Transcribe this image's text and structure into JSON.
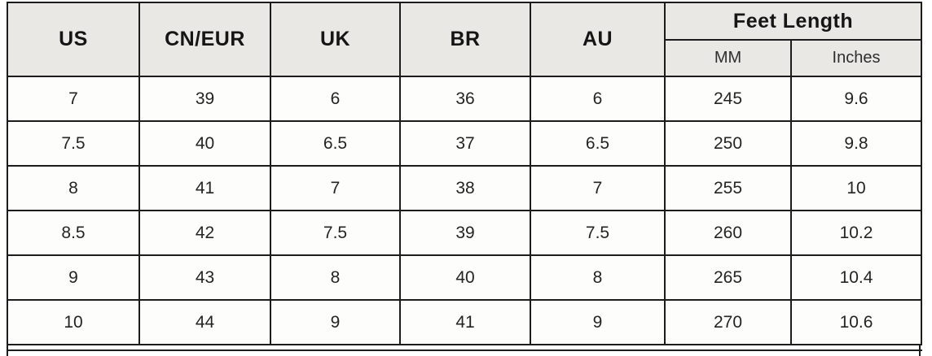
{
  "chart_data": {
    "type": "table",
    "columns": [
      "US",
      "CN/EUR",
      "UK",
      "BR",
      "AU",
      "MM",
      "Inches"
    ],
    "column_groups": [
      {
        "label": "Feet Length",
        "spans": [
          "MM",
          "Inches"
        ]
      }
    ],
    "rows": [
      [
        "7",
        "39",
        "6",
        "36",
        "6",
        "245",
        "9.6"
      ],
      [
        "7.5",
        "40",
        "6.5",
        "37",
        "6.5",
        "250",
        "9.8"
      ],
      [
        "8",
        "41",
        "7",
        "38",
        "7",
        "255",
        "10"
      ],
      [
        "8.5",
        "42",
        "7.5",
        "39",
        "7.5",
        "260",
        "10.2"
      ],
      [
        "9",
        "43",
        "8",
        "40",
        "8",
        "265",
        "10.4"
      ],
      [
        "10",
        "44",
        "9",
        "41",
        "9",
        "270",
        "10.6"
      ]
    ]
  },
  "colors": {
    "header_bg": "#e9e8e5",
    "border": "#1c1c1c",
    "body_bg": "#fdfdfc",
    "text": "#242424"
  }
}
